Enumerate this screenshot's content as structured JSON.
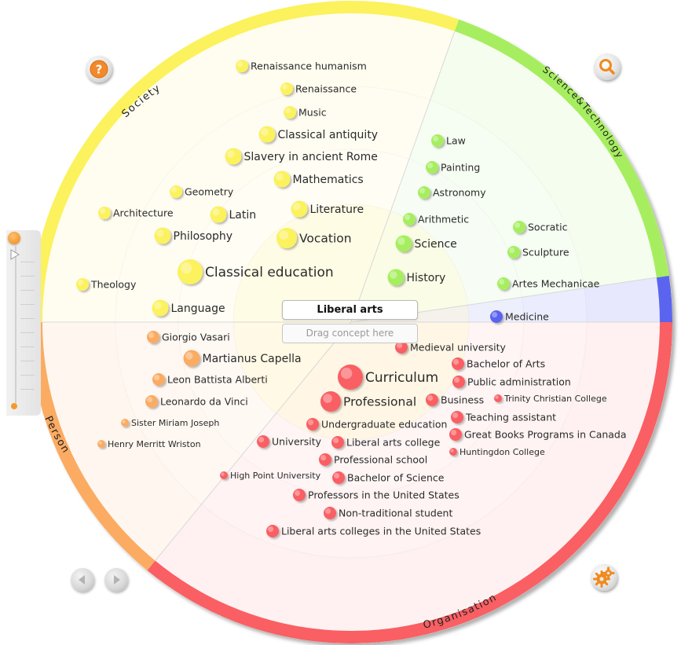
{
  "sectors": [
    {
      "id": "society",
      "label": "Society",
      "color": "#fbf25d",
      "light": "#fffdf0"
    },
    {
      "id": "scitech",
      "label": "Science&Technology",
      "color": "#a6ee5f",
      "light": "#f5fdef"
    },
    {
      "id": "medicine",
      "label": "",
      "color": "#5a64ef",
      "light": "#e7e8fd"
    },
    {
      "id": "organisation",
      "label": "Organisation",
      "color": "#f95f63",
      "light": "#fff1f1"
    },
    {
      "id": "person",
      "label": "Person",
      "color": "#fbab62",
      "light": "#fff7ef"
    }
  ],
  "center": {
    "title": "Liberal arts",
    "drop_placeholder": "Drag concept here"
  },
  "concepts": [
    {
      "label": "Renaissance humanism",
      "group": "society",
      "size": "s"
    },
    {
      "label": "Renaissance",
      "group": "society",
      "size": "s"
    },
    {
      "label": "Music",
      "group": "society",
      "size": "s"
    },
    {
      "label": "Classical antiquity",
      "group": "society",
      "size": "m"
    },
    {
      "label": "Slavery in ancient Rome",
      "group": "society",
      "size": "m"
    },
    {
      "label": "Mathematics",
      "group": "society",
      "size": "m"
    },
    {
      "label": "Geometry",
      "group": "society",
      "size": "s"
    },
    {
      "label": "Architecture",
      "group": "society",
      "size": "s"
    },
    {
      "label": "Latin",
      "group": "society",
      "size": "m"
    },
    {
      "label": "Literature",
      "group": "society",
      "size": "m"
    },
    {
      "label": "Philosophy",
      "group": "society",
      "size": "m"
    },
    {
      "label": "Vocation",
      "group": "society",
      "size": "l"
    },
    {
      "label": "Classical education",
      "group": "society",
      "size": "xl"
    },
    {
      "label": "Theology",
      "group": "society",
      "size": "s"
    },
    {
      "label": "Language",
      "group": "society",
      "size": "m"
    },
    {
      "label": "Law",
      "group": "scitech",
      "size": "s"
    },
    {
      "label": "Painting",
      "group": "scitech",
      "size": "s"
    },
    {
      "label": "Astronomy",
      "group": "scitech",
      "size": "s"
    },
    {
      "label": "Arithmetic",
      "group": "scitech",
      "size": "s"
    },
    {
      "label": "Science",
      "group": "scitech",
      "size": "m"
    },
    {
      "label": "History",
      "group": "scitech",
      "size": "m"
    },
    {
      "label": "Socratic",
      "group": "scitech",
      "size": "s"
    },
    {
      "label": "Sculpture",
      "group": "scitech",
      "size": "s"
    },
    {
      "label": "Artes Mechanicae",
      "group": "scitech",
      "size": "s"
    },
    {
      "label": "Medicine",
      "group": "medicine",
      "size": "s"
    },
    {
      "label": "Giorgio Vasari",
      "group": "person",
      "size": "s"
    },
    {
      "label": "Martianus Capella",
      "group": "person",
      "size": "m"
    },
    {
      "label": "Leon Battista Alberti",
      "group": "person",
      "size": "s"
    },
    {
      "label": "Leonardo da Vinci",
      "group": "person",
      "size": "s"
    },
    {
      "label": "Sister Miriam Joseph",
      "group": "person",
      "size": "xs"
    },
    {
      "label": "Henry Merritt Wriston",
      "group": "person",
      "size": "xs"
    },
    {
      "label": "Medieval university",
      "group": "organisation",
      "size": "s"
    },
    {
      "label": "Bachelor of Arts",
      "group": "organisation",
      "size": "s"
    },
    {
      "label": "Curriculum",
      "group": "organisation",
      "size": "xl"
    },
    {
      "label": "Public administration",
      "group": "organisation",
      "size": "s"
    },
    {
      "label": "Professional",
      "group": "organisation",
      "size": "l"
    },
    {
      "label": "Business",
      "group": "organisation",
      "size": "s"
    },
    {
      "label": "Trinity Christian College",
      "group": "organisation",
      "size": "xs"
    },
    {
      "label": "Teaching assistant",
      "group": "organisation",
      "size": "s"
    },
    {
      "label": "Undergraduate education",
      "group": "organisation",
      "size": "s"
    },
    {
      "label": "Great Books Programs in Canada",
      "group": "organisation",
      "size": "s"
    },
    {
      "label": "University",
      "group": "organisation",
      "size": "s"
    },
    {
      "label": "Liberal arts college",
      "group": "organisation",
      "size": "s"
    },
    {
      "label": "Huntingdon College",
      "group": "organisation",
      "size": "xs"
    },
    {
      "label": "Professional school",
      "group": "organisation",
      "size": "s"
    },
    {
      "label": "High Point University",
      "group": "organisation",
      "size": "xs"
    },
    {
      "label": "Bachelor of Science",
      "group": "organisation",
      "size": "s"
    },
    {
      "label": "Professors in the United States",
      "group": "organisation",
      "size": "s"
    },
    {
      "label": "Non-traditional student",
      "group": "organisation",
      "size": "s"
    },
    {
      "label": "Liberal arts colleges in the United States",
      "group": "organisation",
      "size": "s"
    }
  ],
  "icons": {
    "help": "help-icon",
    "search": "magnifier-icon",
    "settings": "gears-icon",
    "back": "arrow-left-icon",
    "forward": "arrow-right-icon",
    "slider_pointer": "triangle-pointer-icon"
  },
  "colors": {
    "society": "#fbf25d",
    "scitech": "#a6ee5f",
    "medicine": "#5a64ef",
    "organisation": "#f95f63",
    "person": "#fbab62",
    "accent_orange": "#f08a10"
  }
}
